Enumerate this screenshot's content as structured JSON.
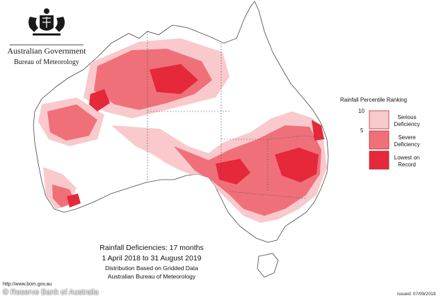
{
  "header": {
    "government": "Australian Government",
    "bureau": "Bureau of Meteorology"
  },
  "legend": {
    "title": "Rainfall Percentile Ranking",
    "ticks": [
      "10",
      "5"
    ],
    "items": [
      {
        "label_lines": [
          "Serious",
          "Deficiency"
        ],
        "color": "#f9c9cc"
      },
      {
        "label_lines": [
          "Severe",
          "Deficiency"
        ],
        "color": "#f0707a"
      },
      {
        "label_lines": [
          "Lowest on",
          "Record"
        ],
        "color": "#e5283a"
      }
    ]
  },
  "caption": {
    "title": "Rainfall Deficiencies: 17 months",
    "period": "1 April 2018 to 31 August 2019",
    "basis": "Distribution Based on Gridded Data",
    "source": "Australian Bureau of Meteorology"
  },
  "footer": {
    "url": "http://www.bom.gov.au",
    "copyright": "© Reserve Bank of Australia",
    "issued": "Issued: 07/09/2019"
  }
}
